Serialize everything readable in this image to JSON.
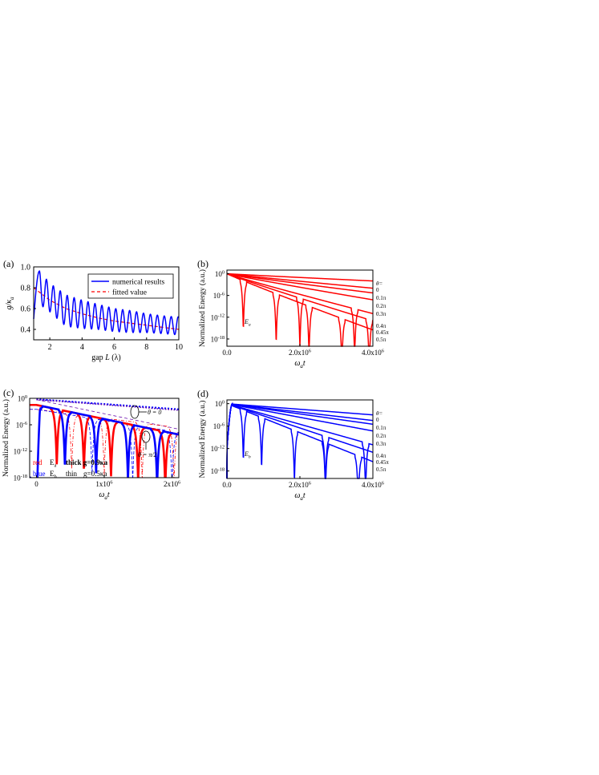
{
  "panels": {
    "a": {
      "label": "(a)"
    },
    "b": {
      "label": "(b)"
    },
    "c": {
      "label": "(c)"
    },
    "d": {
      "label": "(d)"
    }
  },
  "colors": {
    "red": "#ff0000",
    "blue": "#0000ff",
    "purple": "#6a0dad",
    "axis": "#000000"
  },
  "chart_data": [
    {
      "id": "a",
      "type": "line",
      "xlabel": "gap L (λ)",
      "ylabel": "g/κa",
      "xlim": [
        1,
        10
      ],
      "ylim": [
        0.3,
        1.0
      ],
      "xticks": [
        2,
        4,
        6,
        8,
        10
      ],
      "yticks": [
        0.4,
        0.6,
        0.8,
        1.0
      ],
      "legend": {
        "position": "top-right",
        "entries": [
          "numerical results",
          "fitted value"
        ]
      },
      "series": [
        {
          "name": "numerical results",
          "style": "solid-blue",
          "model": "damped-oscillation",
          "period": 0.43,
          "first_peak_x": 1.36,
          "first_peak_y": 0.96,
          "x": [
            1.0,
            1.36,
            1.55,
            1.8,
            2.2,
            3.0,
            4.0,
            5.0,
            6.0,
            7.0,
            8.0,
            9.0,
            9.8
          ],
          "envelope_upper": [
            0.5,
            0.96,
            0.9,
            0.88,
            0.82,
            0.73,
            0.68,
            0.64,
            0.6,
            0.58,
            0.55,
            0.53,
            0.52
          ],
          "envelope_lower": [
            0.5,
            0.6,
            0.62,
            0.6,
            0.54,
            0.43,
            0.41,
            0.4,
            0.38,
            0.37,
            0.37,
            0.36,
            0.35
          ]
        },
        {
          "name": "fitted value",
          "style": "dashed-red",
          "x": [
            1.0,
            1.5,
            2,
            3,
            4,
            5,
            6,
            7,
            8,
            9,
            10
          ],
          "y": [
            0.8,
            0.74,
            0.68,
            0.6,
            0.55,
            0.51,
            0.48,
            0.46,
            0.44,
            0.42,
            0.4
          ]
        }
      ]
    },
    {
      "id": "b",
      "type": "line",
      "xlabel": "ωat",
      "ylabel": "Normalized Energy (a.u.)",
      "xlim": [
        0,
        4000000
      ],
      "ylim_log10": [
        -20,
        1
      ],
      "xtick_labels": [
        "0.0",
        "2.0x10^6",
        "4.0x10^6"
      ],
      "ytick_labels": [
        "10^0",
        "10^-6",
        "10^-12",
        "10^-18"
      ],
      "ytick_values_log10": [
        0,
        -6,
        -12,
        -18
      ],
      "annotation": "Ea",
      "legend_title": "θ=",
      "series": [
        {
          "name": "0",
          "end_log10": -2.0,
          "dip_x": null
        },
        {
          "name": "0.1π",
          "end_log10": -4.0,
          "dip_x": null
        },
        {
          "name": "0.2π",
          "end_log10": -5.3,
          "dip_x": null
        },
        {
          "name": "0.3π",
          "end_log10": -7.2,
          "dip_x": null
        },
        {
          "name": "0.4π",
          "end_log10": -11.0,
          "dip_x": 3500000
        },
        {
          "name": "0.45π",
          "end_log10": -13.0,
          "dip_x": 2000000
        },
        {
          "name": "0.5π",
          "end_log10": -15.5,
          "dip_x": 450000
        }
      ]
    },
    {
      "id": "c",
      "type": "line",
      "xlabel": "ωat",
      "ylabel": "Normalized Energy (a.u.)",
      "xlim": [
        -100000,
        2100000
      ],
      "ylim_log10": [
        -18,
        0
      ],
      "xtick_labels": [
        "0",
        "1x10^6",
        "2x10^6"
      ],
      "ytick_labels": [
        "10^0",
        "10^-6",
        "10^-12",
        "10^-18"
      ],
      "ytick_values_log10": [
        0,
        -6,
        -12,
        -18
      ],
      "annotations": [
        "θ = 0",
        "θ = π/2"
      ],
      "legend": {
        "row1": [
          "red",
          "Ea",
          "thick g=0.9κa"
        ],
        "row2": [
          "blue",
          "Eb",
          "thin",
          "g=0.5κa"
        ]
      },
      "series": [
        {
          "name": "Ea thick θ=π/2",
          "dips_x": [
            300000,
            700000,
            1100000,
            1500000,
            1900000
          ]
        },
        {
          "name": "Eb thick θ=π/2",
          "dips_x": [
            0,
            420000,
            880000,
            1350000,
            1780000
          ]
        },
        {
          "name": "Ea thin θ=π/2",
          "dips_x": [
            520000,
            1000000,
            1560000,
            2030000
          ]
        },
        {
          "name": "Eb thin θ=π/2",
          "dips_x": [
            820000,
            1420000,
            2000000
          ]
        }
      ]
    },
    {
      "id": "d",
      "type": "line",
      "xlabel": "ωat",
      "ylabel": "Normalized Energy (a.u.)",
      "xlim": [
        0,
        4000000
      ],
      "ylim_log10": [
        -20,
        1
      ],
      "xtick_labels": [
        "0.0",
        "2.0x10^6",
        "4.0x10^6"
      ],
      "ytick_labels": [
        "10^0",
        "10^-6",
        "10^-12",
        "10^-18"
      ],
      "ytick_values_log10": [
        0,
        -6,
        -12,
        -18
      ],
      "annotation": "Eb",
      "legend_title": "θ=",
      "series": [
        {
          "name": "0",
          "end_log10": -3.0
        },
        {
          "name": "0.1π",
          "end_log10": -4.5
        },
        {
          "name": "0.2π",
          "end_log10": -5.5
        },
        {
          "name": "0.3π",
          "end_log10": -7.3
        },
        {
          "name": "0.4π",
          "end_log10": -11.0
        },
        {
          "name": "0.45π",
          "end_log10": -13.0
        },
        {
          "name": "0.5π",
          "end_log10": -15.5
        }
      ]
    }
  ]
}
